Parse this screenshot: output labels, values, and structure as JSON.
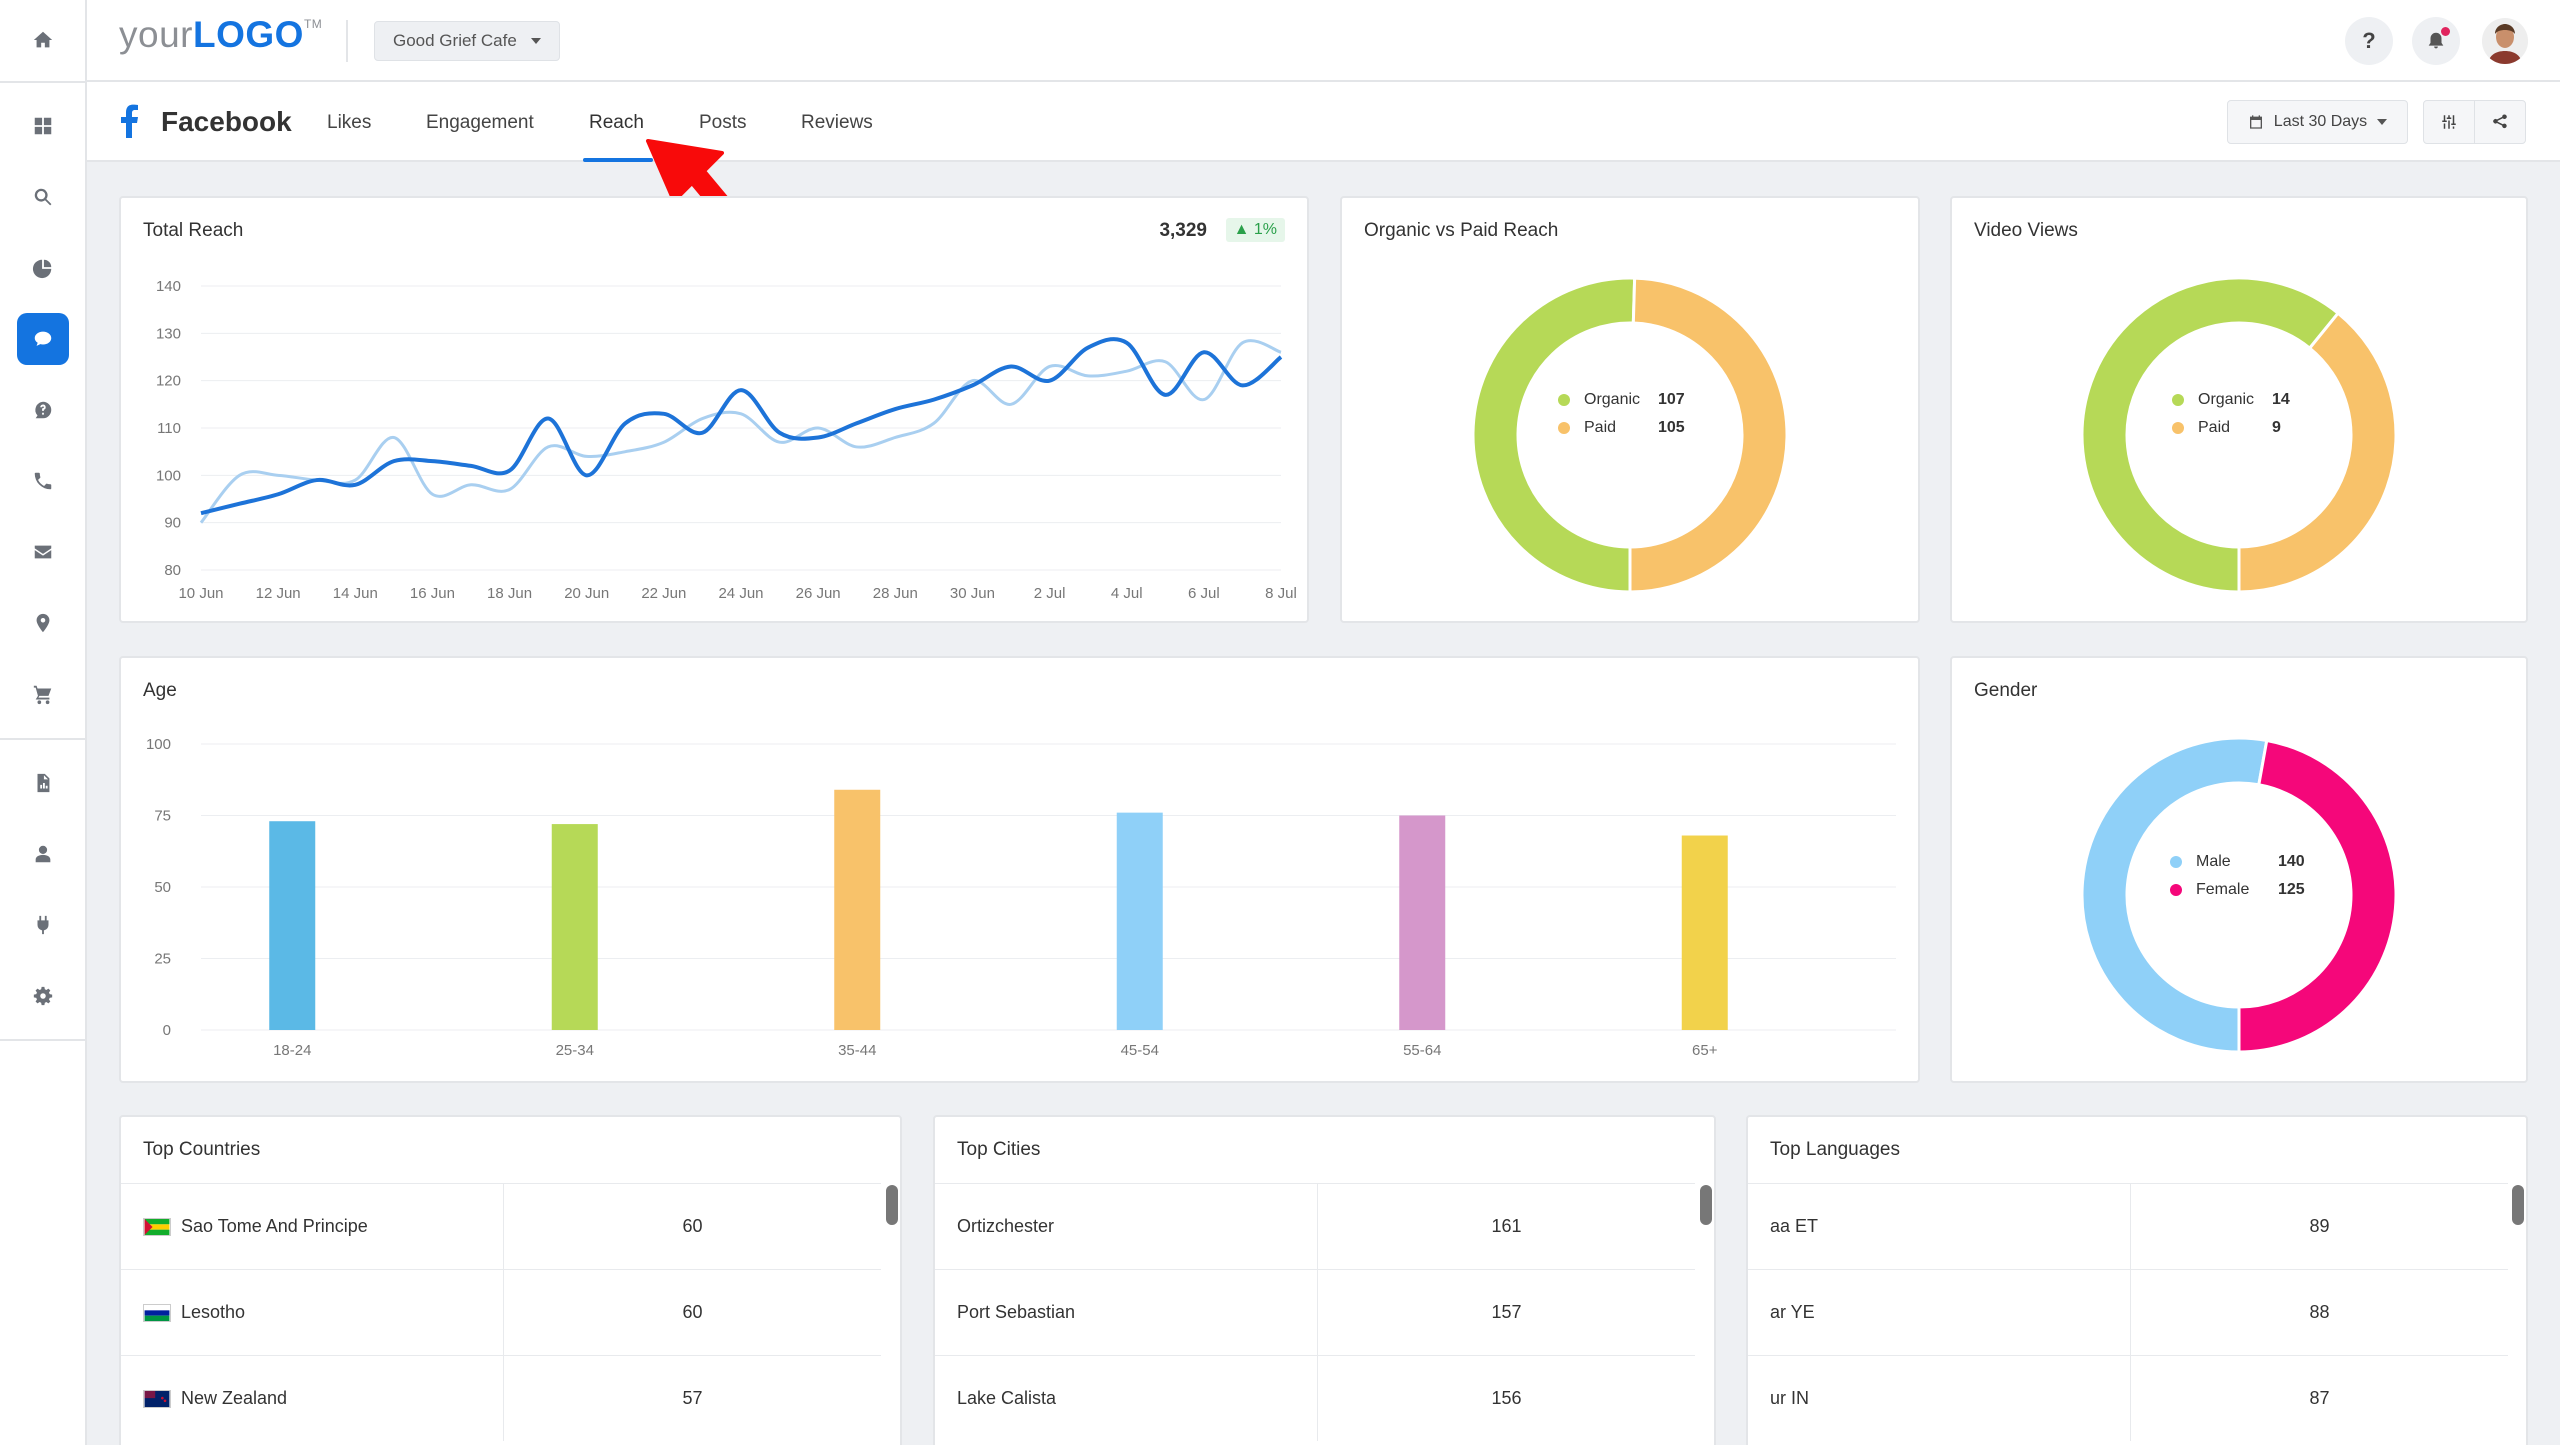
{
  "header": {
    "logo_text": "your",
    "logo_bold": "LOGO",
    "logo_tm": "TM",
    "client": "Good Grief Cafe",
    "help_label": "?"
  },
  "subnav": {
    "title": "Facebook",
    "tabs": [
      "Likes",
      "Engagement",
      "Reach",
      "Posts",
      "Reviews"
    ],
    "active_tab": "Reach",
    "date_range": "Last 30 Days"
  },
  "sidebar": {
    "icons": [
      "home-icon",
      "dashboard-icon",
      "search-icon",
      "pie-chart-icon",
      "chat-icon",
      "help-chat-icon",
      "phone-icon",
      "mail-icon",
      "location-icon",
      "cart-icon",
      "report-icon",
      "user-icon",
      "plug-icon",
      "settings-icon"
    ],
    "active": "chat-icon"
  },
  "total_reach": {
    "title": "Total Reach",
    "value": "3,329",
    "change": "1%"
  },
  "organic_paid": {
    "title": "Organic vs Paid Reach",
    "items": [
      {
        "label": "Organic",
        "value": "107",
        "color": "#b6d957"
      },
      {
        "label": "Paid",
        "value": "105",
        "color": "#f8c26a"
      }
    ]
  },
  "video_views": {
    "title": "Video Views",
    "items": [
      {
        "label": "Organic",
        "value": "14",
        "color": "#b6d957"
      },
      {
        "label": "Paid",
        "value": "9",
        "color": "#f8c26a"
      }
    ]
  },
  "age": {
    "title": "Age"
  },
  "gender": {
    "title": "Gender",
    "items": [
      {
        "label": "Male",
        "value": "140",
        "color": "#8fd0f8"
      },
      {
        "label": "Female",
        "value": "125",
        "color": "#f5077a"
      }
    ]
  },
  "chart_data": [
    {
      "type": "line",
      "title": "Total Reach",
      "x": [
        "10 Jun",
        "11 Jun",
        "12 Jun",
        "13 Jun",
        "14 Jun",
        "15 Jun",
        "16 Jun",
        "17 Jun",
        "18 Jun",
        "19 Jun",
        "20 Jun",
        "21 Jun",
        "22 Jun",
        "23 Jun",
        "24 Jun",
        "25 Jun",
        "26 Jun",
        "27 Jun",
        "28 Jun",
        "29 Jun",
        "30 Jun",
        "1 Jul",
        "2 Jul",
        "3 Jul",
        "4 Jul",
        "5 Jul",
        "6 Jul",
        "7 Jul",
        "8 Jul"
      ],
      "xticks": [
        "10 Jun",
        "12 Jun",
        "14 Jun",
        "16 Jun",
        "18 Jun",
        "20 Jun",
        "22 Jun",
        "24 Jun",
        "26 Jun",
        "28 Jun",
        "30 Jun",
        "2 Jul",
        "4 Jul",
        "6 Jul",
        "8 Jul"
      ],
      "yticks": [
        80,
        90,
        100,
        110,
        120,
        130,
        140
      ],
      "ylim": [
        80,
        140
      ],
      "series": [
        {
          "color": "#1d73d8",
          "values": [
            92,
            94,
            96,
            99,
            98,
            103,
            103,
            102,
            101,
            112,
            100,
            111,
            113,
            109,
            118,
            109,
            108,
            111,
            114,
            116,
            119,
            123,
            120,
            127,
            128,
            117,
            126,
            119,
            125
          ]
        },
        {
          "color": "#a9cff0",
          "values": [
            90,
            100,
            100,
            99,
            99,
            108,
            96,
            98,
            97,
            106,
            104,
            105,
            107,
            112,
            113,
            107,
            110,
            106,
            108,
            111,
            120,
            115,
            123,
            121,
            122,
            124,
            116,
            128,
            126
          ]
        }
      ]
    },
    {
      "type": "pie",
      "title": "Organic vs Paid Reach",
      "labels": [
        "Organic",
        "Paid"
      ],
      "values": [
        107,
        105
      ]
    },
    {
      "type": "pie",
      "title": "Video Views",
      "labels": [
        "Organic",
        "Paid"
      ],
      "values": [
        14,
        9
      ]
    },
    {
      "type": "bar",
      "title": "Age",
      "categories": [
        "18-24",
        "25-34",
        "35-44",
        "45-54",
        "55-64",
        "65+"
      ],
      "values": [
        73,
        72,
        84,
        76,
        75,
        68
      ],
      "colors": [
        "#5bb9e6",
        "#b6d957",
        "#f8c26a",
        "#8fd0f8",
        "#d597cb",
        "#f2d24b"
      ],
      "yticks": [
        0,
        25,
        50,
        75,
        100
      ],
      "ylim": [
        0,
        100
      ]
    },
    {
      "type": "pie",
      "title": "Gender",
      "labels": [
        "Male",
        "Female"
      ],
      "values": [
        140,
        125
      ]
    }
  ],
  "tables": [
    {
      "title": "Top Countries",
      "rows": [
        {
          "name": "Sao Tome And Principe",
          "value": "60"
        },
        {
          "name": "Lesotho",
          "value": "60"
        },
        {
          "name": "New Zealand",
          "value": "57"
        }
      ]
    },
    {
      "title": "Top Cities",
      "rows": [
        {
          "name": "Ortizchester",
          "value": "161"
        },
        {
          "name": "Port Sebastian",
          "value": "157"
        },
        {
          "name": "Lake Calista",
          "value": "156"
        }
      ]
    },
    {
      "title": "Top Languages",
      "rows": [
        {
          "name": "aa ET",
          "value": "89"
        },
        {
          "name": "ar YE",
          "value": "88"
        },
        {
          "name": "ur IN",
          "value": "87"
        }
      ]
    }
  ]
}
